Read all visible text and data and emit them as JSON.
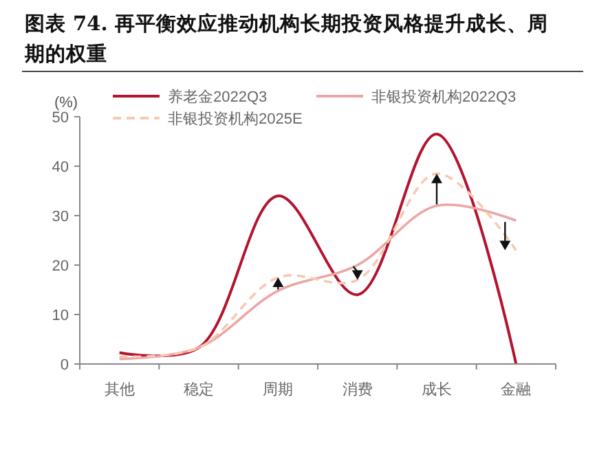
{
  "chart_data": {
    "type": "line",
    "title": "图表 74. 再平衡效应推动机构长期投资风格提升成长、周期的权重",
    "ylabel": "(%)",
    "categories": [
      "其他",
      "稳定",
      "周期",
      "消费",
      "成长",
      "金融"
    ],
    "series": [
      {
        "name": "养老金2022Q3",
        "color": "#b5122e",
        "values": [
          2.3,
          3.3,
          34,
          14,
          46.5,
          0
        ]
      },
      {
        "name": "非银投资机构2022Q3",
        "color": "#eda5a5",
        "values": [
          1,
          3.3,
          14.8,
          20,
          32,
          29
        ]
      },
      {
        "name": "非银投资机构2025E",
        "color": "#f7c9b0",
        "line_style": "dashed",
        "values": [
          1.5,
          3.3,
          17.5,
          17,
          38.5,
          23
        ]
      }
    ],
    "ylim": [
      0,
      50
    ],
    "yticks": [
      0,
      10,
      20,
      30,
      40,
      50
    ],
    "legend": "top"
  }
}
